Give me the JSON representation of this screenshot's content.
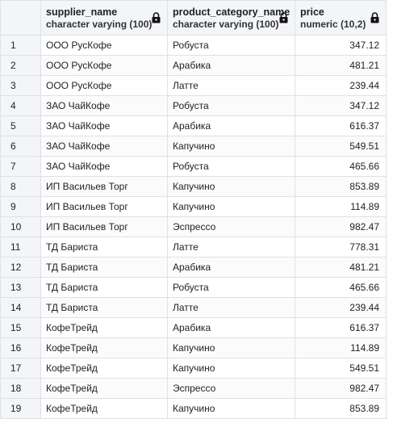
{
  "columns": [
    {
      "name": "supplier_name",
      "type": "character varying (100)",
      "locked": true
    },
    {
      "name": "product_category_name",
      "type": "character varying (100)",
      "locked": true
    },
    {
      "name": "price",
      "type": "numeric (10,2)",
      "locked": true
    }
  ],
  "rows": [
    {
      "n": "1",
      "supplier": "ООО РусКофе",
      "category": "Робуста",
      "price": "347.12"
    },
    {
      "n": "2",
      "supplier": "ООО РусКофе",
      "category": "Арабика",
      "price": "481.21"
    },
    {
      "n": "3",
      "supplier": "ООО РусКофе",
      "category": "Латте",
      "price": "239.44"
    },
    {
      "n": "4",
      "supplier": "ЗАО ЧайКофе",
      "category": "Робуста",
      "price": "347.12"
    },
    {
      "n": "5",
      "supplier": "ЗАО ЧайКофе",
      "category": "Арабика",
      "price": "616.37"
    },
    {
      "n": "6",
      "supplier": "ЗАО ЧайКофе",
      "category": "Капучино",
      "price": "549.51"
    },
    {
      "n": "7",
      "supplier": "ЗАО ЧайКофе",
      "category": "Робуста",
      "price": "465.66"
    },
    {
      "n": "8",
      "supplier": "ИП Васильев Торг",
      "category": "Капучино",
      "price": "853.89"
    },
    {
      "n": "9",
      "supplier": "ИП Васильев Торг",
      "category": "Капучино",
      "price": "114.89"
    },
    {
      "n": "10",
      "supplier": "ИП Васильев Торг",
      "category": "Эспрессо",
      "price": "982.47"
    },
    {
      "n": "11",
      "supplier": "ТД Бариста",
      "category": "Латте",
      "price": "778.31"
    },
    {
      "n": "12",
      "supplier": "ТД Бариста",
      "category": "Арабика",
      "price": "481.21"
    },
    {
      "n": "13",
      "supplier": "ТД Бариста",
      "category": "Робуста",
      "price": "465.66"
    },
    {
      "n": "14",
      "supplier": "ТД Бариста",
      "category": "Латте",
      "price": "239.44"
    },
    {
      "n": "15",
      "supplier": "КофеТрейд",
      "category": "Арабика",
      "price": "616.37"
    },
    {
      "n": "16",
      "supplier": "КофеТрейд",
      "category": "Капучино",
      "price": "114.89"
    },
    {
      "n": "17",
      "supplier": "КофеТрейд",
      "category": "Капучино",
      "price": "549.51"
    },
    {
      "n": "18",
      "supplier": "КофеТрейд",
      "category": "Эспрессо",
      "price": "982.47"
    },
    {
      "n": "19",
      "supplier": "КофеТрейд",
      "category": "Капучино",
      "price": "853.89"
    }
  ],
  "icons": {
    "column_lock": "lock-icon"
  },
  "colors": {
    "header_bg": "#f3f5f9",
    "grid_line": "#dde1e6",
    "text": "#222222"
  }
}
